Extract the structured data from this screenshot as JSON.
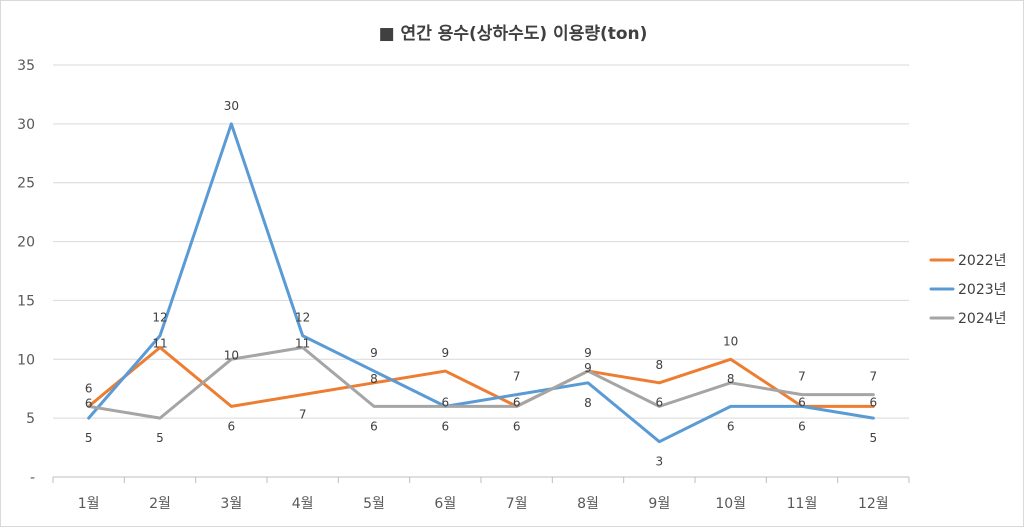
{
  "chart_data": {
    "type": "line",
    "title": "■ 연간 용수(상하수도) 이용량(ton)",
    "xlabel": "",
    "ylabel": "",
    "categories": [
      "1월",
      "2월",
      "3월",
      "4월",
      "5월",
      "6월",
      "7월",
      "8월",
      "9월",
      "10월",
      "11월",
      "12월"
    ],
    "ylim": [
      0,
      35
    ],
    "yticks": [
      0,
      5,
      10,
      15,
      20,
      25,
      30,
      35
    ],
    "ytick_labels": [
      "-",
      "5",
      "10",
      "15",
      "20",
      "25",
      "30",
      "35"
    ],
    "grid": true,
    "legend_position": "right",
    "series": [
      {
        "name": "2022년",
        "color": "#ED7D31",
        "values": [
          6,
          11,
          6,
          7,
          8,
          9,
          6,
          9,
          8,
          10,
          6,
          6
        ]
      },
      {
        "name": "2023년",
        "color": "#5B9BD5",
        "values": [
          5,
          12,
          30,
          12,
          9,
          6,
          7,
          8,
          3,
          6,
          6,
          5
        ]
      },
      {
        "name": "2024년",
        "color": "#A5A5A5",
        "values": [
          6,
          5,
          10,
          11,
          6,
          6,
          6,
          9,
          6,
          8,
          7,
          7
        ]
      }
    ]
  }
}
